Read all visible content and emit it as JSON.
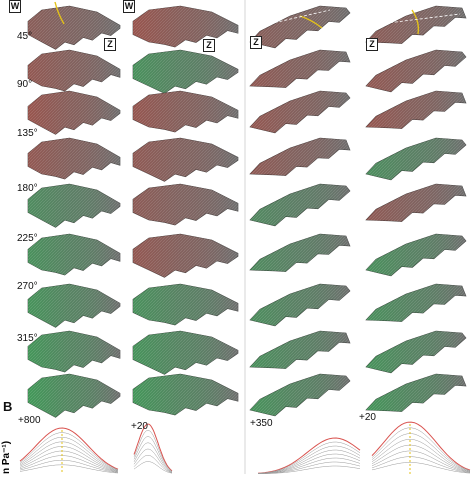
{
  "panel_b_label": "B",
  "angle_labels": [
    "45°",
    "90°",
    "135°",
    "180°",
    "225°",
    "270°",
    "315°"
  ],
  "axis_tags": {
    "w": "W",
    "z": "Z"
  },
  "y_axis_label": "n Pa⁻¹)",
  "scale_labels": [
    "+800",
    "+20",
    "+350",
    "+20"
  ],
  "colors": {
    "surface": "#6e6e6e",
    "red_tint": "#b0453a",
    "green_tint": "#2fa84f",
    "outline": "#3a3a3a",
    "curve_outer": "#d9534f",
    "curve_inner": "#9a9a9a",
    "highlight": "#e3c21a"
  },
  "rows": [
    {
      "tint": [
        "red",
        "red",
        "red",
        "red"
      ],
      "t0": [
        0.2,
        0.7,
        0.2,
        0.3
      ]
    },
    {
      "tint": [
        "red",
        "green",
        "red",
        "red"
      ],
      "t0": [
        0.5,
        0.6,
        0.45,
        0.5
      ]
    },
    {
      "tint": [
        "red",
        "red",
        "red",
        "red"
      ],
      "t0": [
        0.7,
        0.6,
        0.55,
        0.6
      ]
    },
    {
      "tint": [
        "red",
        "red",
        "red",
        "green"
      ],
      "t0": [
        0.5,
        0.4,
        0.4,
        0.5
      ]
    },
    {
      "tint": [
        "green",
        "red",
        "green",
        "red"
      ],
      "t0": [
        0.4,
        0.3,
        0.3,
        0.4
      ]
    },
    {
      "tint": [
        "green",
        "red",
        "green",
        "green"
      ],
      "t0": [
        0.6,
        0.5,
        0.4,
        0.6
      ]
    },
    {
      "tint": [
        "green",
        "green",
        "green",
        "green"
      ],
      "t0": [
        0.7,
        0.6,
        0.5,
        0.6
      ]
    },
    {
      "tint": [
        "green",
        "green",
        "green",
        "green"
      ],
      "t0": [
        0.8,
        0.7,
        0.6,
        0.7
      ]
    },
    {
      "tint": [
        "green",
        "green",
        "green",
        "green"
      ],
      "t0": [
        0.9,
        0.8,
        0.7,
        0.8
      ]
    }
  ]
}
